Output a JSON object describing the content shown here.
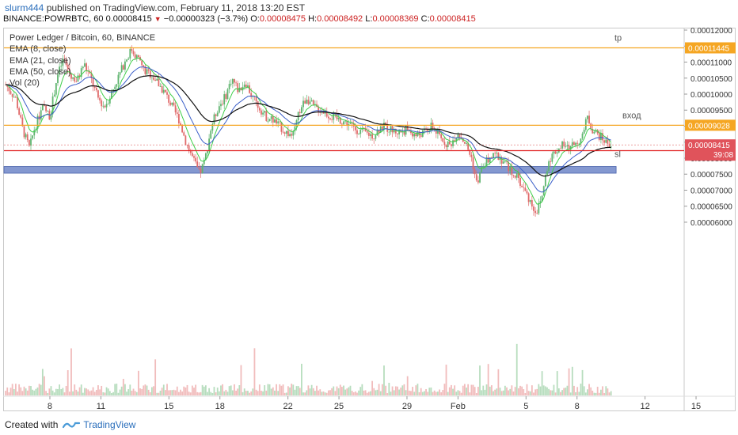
{
  "header": {
    "author": "slurm444",
    "published_text": "published on TradingView.com, February 11, 2018 13:20 EST",
    "symbol_line": "BINANCE:POWRBTC, 60",
    "last": "0.00008415",
    "change": "−0.00000323 (−3.7%)",
    "o_label": "O:",
    "o_value": "0.00008475",
    "h_label": "H:",
    "h_value": "0.00008492",
    "l_label": "L:",
    "l_value": "0.00008369",
    "c_label": "C:",
    "c_value": "0.00008415"
  },
  "legend": {
    "title": "Power Ledger / Bitcoin, 60, BINANCE",
    "ema8": "EMA (8, close)",
    "ema21": "EMA (21, close)",
    "ema50": "EMA (50, close)",
    "vol": "Vol (20)"
  },
  "footer": {
    "created_with": "Created with",
    "brand": "TradingView"
  },
  "colors": {
    "up": "#5fb46f",
    "down": "#e06a6a",
    "ema8": "#3fcf4a",
    "ema21": "#3b5fc9",
    "ema50": "#111111",
    "level_orange": "#f5a623",
    "level_red": "#e02020",
    "zone": "#6f86c8",
    "axis_text": "#333333"
  },
  "chart_data": {
    "type": "candlestick",
    "ylim": [
      5.9e-06,
      0.0001205
    ],
    "x_range_days": [
      5.3,
      45.3
    ],
    "y_ticks": [
      "0.00012000",
      "0.00011500",
      "0.00011000",
      "0.00010500",
      "0.00010000",
      "0.00009500",
      "0.00009000",
      "0.00008500",
      "0.00008000",
      "0.00007500",
      "0.00007000",
      "0.00006500",
      "0.00006000"
    ],
    "x_ticks": [
      {
        "label": "8",
        "day": 8
      },
      {
        "label": "11",
        "day": 11
      },
      {
        "label": "15",
        "day": 15
      },
      {
        "label": "18",
        "day": 18
      },
      {
        "label": "22",
        "day": 22
      },
      {
        "label": "25",
        "day": 25
      },
      {
        "label": "29",
        "day": 29
      },
      {
        "label": "Feb",
        "day": 32
      },
      {
        "label": "5",
        "day": 36
      },
      {
        "label": "8",
        "day": 39
      },
      {
        "label": "12",
        "day": 43
      },
      {
        "label": "15",
        "day": 46
      }
    ],
    "price_path": [
      [
        5.4,
        0.000103
      ],
      [
        6.0,
        9.85e-05
      ],
      [
        6.4,
        8.9e-05
      ],
      [
        6.8,
        8.3e-05
      ],
      [
        7.1,
        8.95e-05
      ],
      [
        7.6,
        9.6e-05
      ],
      [
        8.0,
        9.3e-05
      ],
      [
        8.4,
        0.000105
      ],
      [
        8.8,
        0.000111
      ],
      [
        9.2,
        0.000106
      ],
      [
        9.6,
        0.000104
      ],
      [
        10.0,
        0.0001095
      ],
      [
        10.4,
        0.000105
      ],
      [
        10.8,
        9.9e-05
      ],
      [
        11.2,
        9.6e-05
      ],
      [
        11.6,
        0.0001
      ],
      [
        12.0,
        0.000105
      ],
      [
        12.4,
        0.00011
      ],
      [
        12.8,
        0.000114
      ],
      [
        13.2,
        0.000111
      ],
      [
        13.6,
        0.000107
      ],
      [
        14.0,
        0.000106
      ],
      [
        14.4,
        0.000103
      ],
      [
        14.8,
        0.0001
      ],
      [
        15.2,
        9.6e-05
      ],
      [
        15.6,
        9.2e-05
      ],
      [
        16.0,
        8.5e-05
      ],
      [
        16.4,
        8e-05
      ],
      [
        16.8,
        7.5e-05
      ],
      [
        17.1,
        7.9e-05
      ],
      [
        17.5,
        9e-05
      ],
      [
        17.9,
        9.6e-05
      ],
      [
        18.3,
        9.9e-05
      ],
      [
        18.7,
        0.000105
      ],
      [
        19.1,
        0.000101
      ],
      [
        19.5,
        0.000104
      ],
      [
        19.9,
        9.9e-05
      ],
      [
        20.3,
        9.6e-05
      ],
      [
        20.7,
        9.3e-05
      ],
      [
        21.1,
        9.2e-05
      ],
      [
        21.5,
        9e-05
      ],
      [
        21.9,
        8.8e-05
      ],
      [
        22.3,
        8.7e-05
      ],
      [
        22.7,
        9.5e-05
      ],
      [
        23.1,
        9.9e-05
      ],
      [
        23.5,
        9.6e-05
      ],
      [
        24.0,
        9.5e-05
      ],
      [
        24.5,
        9.3e-05
      ],
      [
        25.0,
        9.2e-05
      ],
      [
        25.5,
        9.1e-05
      ],
      [
        26.0,
        8.9e-05
      ],
      [
        26.5,
        8.8e-05
      ],
      [
        27.0,
        8.7e-05
      ],
      [
        27.5,
        9e-05
      ],
      [
        28.0,
        8.9e-05
      ],
      [
        28.5,
        8.8e-05
      ],
      [
        29.0,
        8.9e-05
      ],
      [
        29.5,
        8.7e-05
      ],
      [
        30.0,
        8.8e-05
      ],
      [
        30.5,
        9e-05
      ],
      [
        31.0,
        8.6e-05
      ],
      [
        31.5,
        8.4e-05
      ],
      [
        32.0,
        8.8e-05
      ],
      [
        32.4,
        8.5e-05
      ],
      [
        32.8,
        8e-05
      ],
      [
        33.1,
        7.2e-05
      ],
      [
        33.5,
        7.8e-05
      ],
      [
        33.9,
        8e-05
      ],
      [
        34.3,
        8.1e-05
      ],
      [
        34.7,
        7.9e-05
      ],
      [
        35.1,
        7.6e-05
      ],
      [
        35.5,
        7.4e-05
      ],
      [
        35.9,
        7e-05
      ],
      [
        36.3,
        6.6e-05
      ],
      [
        36.6,
        6.3e-05
      ],
      [
        36.9,
        6.7e-05
      ],
      [
        37.3,
        7.9e-05
      ],
      [
        37.7,
        8.2e-05
      ],
      [
        38.1,
        8.4e-05
      ],
      [
        38.5,
        8.3e-05
      ],
      [
        38.9,
        8.5e-05
      ],
      [
        39.3,
        8.6e-05
      ],
      [
        39.6,
        9.3e-05
      ],
      [
        39.9,
        8.9e-05
      ],
      [
        40.3,
        8.7e-05
      ],
      [
        40.7,
        8.5e-05
      ],
      [
        41.0,
        8.42e-05
      ]
    ],
    "volume_scale_max": 1,
    "levels": [
      {
        "price": 0.00011445,
        "label": "0.00011445",
        "note": "tp",
        "color": "#f5a623"
      },
      {
        "price": 9.028e-05,
        "label": "0.00009028",
        "note": "вход",
        "color": "#f5a623"
      },
      {
        "price": 8.234e-05,
        "label": "0.00008234",
        "note": "sl",
        "color": "#e02020"
      }
    ],
    "last_price": {
      "price": 8.415e-05,
      "label": "0.00008415",
      "countdown": "39:08"
    },
    "zone": {
      "from_day": 5.3,
      "to_day": 41.3,
      "top": 7.74e-05,
      "bottom": 7.53e-05
    }
  }
}
